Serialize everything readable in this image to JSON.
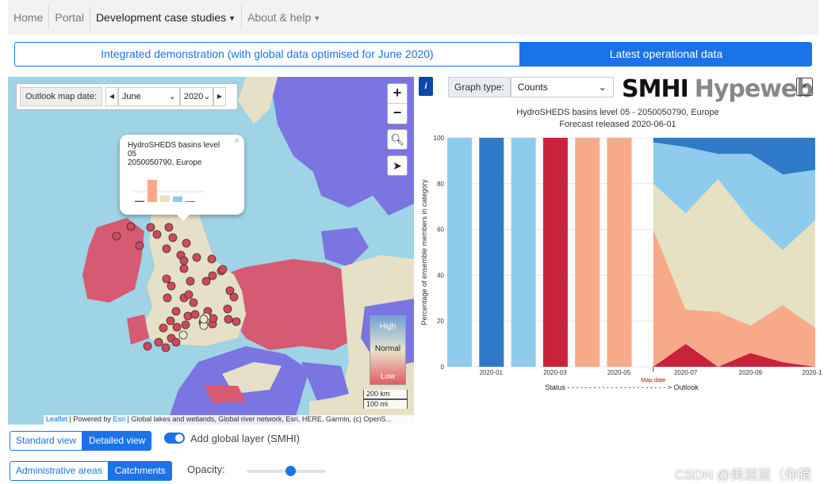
{
  "nav": {
    "items": [
      {
        "label": "Home",
        "dropdown": false,
        "active": false
      },
      {
        "label": "Portal",
        "dropdown": false,
        "active": false
      },
      {
        "label": "Development case studies",
        "dropdown": true,
        "active": true
      },
      {
        "label": "About & help",
        "dropdown": true,
        "active": false
      }
    ]
  },
  "mode": {
    "left_label": "Integrated demonstration (with global data optimised for June 2020)",
    "right_label": "Latest operational data"
  },
  "map": {
    "outlook_label": "Outlook map date:",
    "month": "June",
    "year": "2020",
    "zoom_in": "+",
    "zoom_out": "−",
    "popup": {
      "line1": "HydroSHEDS basins level",
      "line2": "05",
      "line3": "2050050790, Europe",
      "close": "×",
      "bar_values": [
        2,
        40,
        12,
        10,
        1
      ],
      "bar_colors": [
        "#c8223c",
        "#f7a98a",
        "#e5e1c2",
        "#8ecbec",
        "#2f7ac8"
      ]
    },
    "legend": {
      "high": "High",
      "normal": "Normal",
      "low": "Low"
    },
    "scale": {
      "km": "200 km",
      "mi": "100 mi"
    },
    "attribution": {
      "leaflet": "Leaflet",
      "powered": "| Powered by",
      "esri": "Esri",
      "rest": "| Global lakes and wetlands, Global river network, Esri, HERE, Garmin, (c) OpenS..."
    }
  },
  "view": {
    "standard": "Standard view",
    "detailed": "Detailed view",
    "selected": "Detailed view"
  },
  "global_layer": {
    "label": "Add global layer (SMHI)",
    "on": true
  },
  "areas": {
    "admin": "Administrative areas",
    "catchments": "Catchments",
    "selected": "Catchments"
  },
  "opacity": {
    "label": "Opacity:",
    "value": 0.55
  },
  "panel": {
    "info": "i",
    "graph_type_label": "Graph type:",
    "graph_type_value": "Counts",
    "logo_a": "SMHI",
    "logo_b": "Hypeweb",
    "close": "×"
  },
  "chart_data": {
    "type": "area",
    "title": "HydroSHEDS basins level 05 - 2050050790, Europe",
    "subtitle": "Forecast released 2020-06-01",
    "ylabel": "Percentage of ensemble members in category",
    "xlabel": "Status - - - - - - - - - - - - - - - - - - - - - - - > Outlook",
    "map_date_label": "Map date",
    "ylim": [
      0,
      100
    ],
    "yticks": [
      0,
      20,
      40,
      60,
      80,
      100
    ],
    "xtick_labels": [
      "2020-01",
      "2020-03",
      "2020-05",
      "2020-07",
      "2020-09",
      "2020-1"
    ],
    "status_bars": [
      {
        "month": "2019-12",
        "category": "Above normal",
        "value": 100,
        "color": "#8ecbec"
      },
      {
        "month": "2020-01",
        "category": "High",
        "value": 100,
        "color": "#2f7ac8"
      },
      {
        "month": "2020-02",
        "category": "Above normal",
        "value": 100,
        "color": "#8ecbec"
      },
      {
        "month": "2020-03",
        "category": "Low",
        "value": 100,
        "color": "#c8223c"
      },
      {
        "month": "2020-04",
        "category": "Below normal",
        "value": 100,
        "color": "#f7a98a"
      },
      {
        "month": "2020-05",
        "category": "Below normal",
        "value": 100,
        "color": "#f7a98a"
      }
    ],
    "outlook": {
      "x": [
        "2020-06",
        "2020-07",
        "2020-08",
        "2020-09",
        "2020-10",
        "2020-11"
      ],
      "series": [
        {
          "category": "Low",
          "color": "#c8223c",
          "values": [
            0,
            10,
            0,
            6,
            2,
            0
          ]
        },
        {
          "category": "Below normal",
          "color": "#f7a98a",
          "values": [
            60,
            15,
            24,
            12,
            25,
            17
          ]
        },
        {
          "category": "Normal",
          "color": "#e5e1c2",
          "values": [
            20,
            42,
            58,
            46,
            24,
            47
          ]
        },
        {
          "category": "Above normal",
          "color": "#8ecbec",
          "values": [
            18,
            29,
            11,
            29,
            33,
            22
          ]
        },
        {
          "category": "High",
          "color": "#2f7ac8",
          "values": [
            2,
            4,
            7,
            7,
            16,
            14
          ]
        }
      ]
    }
  }
}
